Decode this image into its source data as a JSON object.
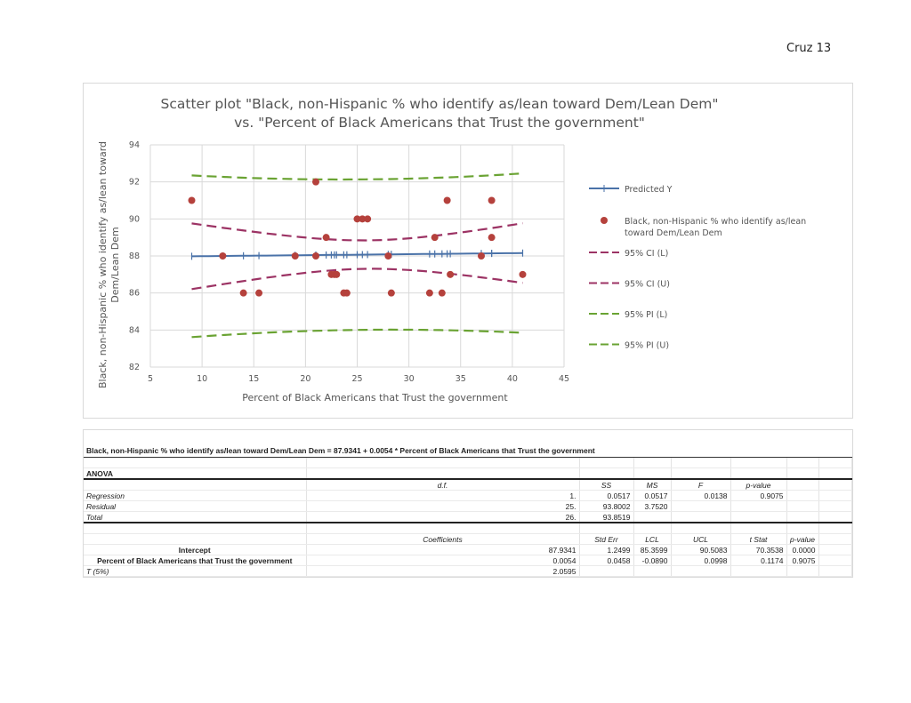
{
  "page_number": "Cruz 13",
  "chart_data": {
    "type": "scatter",
    "title": [
      "Scatter plot \"Black, non-Hispanic % who identify as/lean toward Dem/Lean Dem\"",
      "vs. \"Percent of Black Americans that Trust the government\""
    ],
    "xlabel": "Percent of Black Americans that Trust the government",
    "ylabel": [
      "Black, non-Hispanic % who identify as/lean toward",
      "Dem/Lean Dem"
    ],
    "xlim": [
      5,
      45
    ],
    "ylim": [
      82,
      94
    ],
    "xticks": [
      5,
      10,
      15,
      20,
      25,
      30,
      35,
      40,
      45
    ],
    "yticks": [
      82,
      84,
      86,
      88,
      90,
      92,
      94
    ],
    "grid": true,
    "legend_position": "right",
    "regression": {
      "intercept": 87.9341,
      "slope": 0.0054,
      "residual_ms": 3.752,
      "t": 2.0595
    },
    "points": [
      [
        21,
        92
      ],
      [
        9,
        91
      ],
      [
        33.7,
        91
      ],
      [
        38,
        91
      ],
      [
        25,
        90
      ],
      [
        25.5,
        90
      ],
      [
        26,
        90
      ],
      [
        22,
        89
      ],
      [
        32.5,
        89
      ],
      [
        38,
        89
      ],
      [
        12,
        88
      ],
      [
        19,
        88
      ],
      [
        21,
        88
      ],
      [
        28,
        88
      ],
      [
        37,
        88
      ],
      [
        22.5,
        87
      ],
      [
        22.8,
        87
      ],
      [
        23,
        87
      ],
      [
        34,
        87
      ],
      [
        41,
        87
      ],
      [
        14,
        86
      ],
      [
        15.5,
        86
      ],
      [
        23.7,
        86
      ],
      [
        24,
        86
      ],
      [
        28.3,
        86
      ],
      [
        32,
        86
      ],
      [
        33.2,
        86
      ]
    ],
    "legend": [
      {
        "name": "Predicted Y",
        "color": "#4a72a8",
        "style": "line-plus"
      },
      {
        "name": "Black, non-Hispanic % who identify as/lean toward Dem/Lean Dem",
        "lines": [
          "Black, non-Hispanic % who identify as/lean",
          "toward Dem/Lean Dem"
        ],
        "color": "#b5413c",
        "style": "dot"
      },
      {
        "name": "95% CI (L)",
        "color": "#9c3364",
        "style": "dash"
      },
      {
        "name": "95% CI (U)",
        "color": "#9c3364",
        "style": "dash"
      },
      {
        "name": "95% PI (L)",
        "color": "#6aa333",
        "style": "dash"
      },
      {
        "name": "95% PI (U)",
        "color": "#6aa333",
        "style": "dash"
      }
    ]
  },
  "table": {
    "equation": "Black, non-Hispanic % who identify as/lean toward Dem/Lean Dem =  87.9341 + 0.0054 * Percent of Black Americans that Trust the government",
    "anova_label": "ANOVA",
    "anova_headers": [
      "d.f.",
      "SS",
      "MS",
      "F",
      "p-value"
    ],
    "anova_rows": [
      [
        "Regression",
        "1.",
        "0.0517",
        "0.0517",
        "0.0138",
        "0.9075"
      ],
      [
        "Residual",
        "25.",
        "93.8002",
        "3.7520",
        "",
        ""
      ],
      [
        "Total",
        "26.",
        "93.8519",
        "",
        "",
        ""
      ]
    ],
    "coef_headers": [
      "Coefficients",
      "Std Err",
      "LCL",
      "UCL",
      "t Stat",
      "p-value"
    ],
    "coef_rows": [
      [
        "Intercept",
        "87.9341",
        "1.2499",
        "85.3599",
        "90.5083",
        "70.3538",
        "0.0000"
      ],
      [
        "Percent of Black Americans that Trust the government",
        "0.0054",
        "0.0458",
        "-0.0890",
        "0.0998",
        "0.1174",
        "0.9075"
      ]
    ],
    "t_label": "T (5%)",
    "t_value": "2.0595"
  }
}
